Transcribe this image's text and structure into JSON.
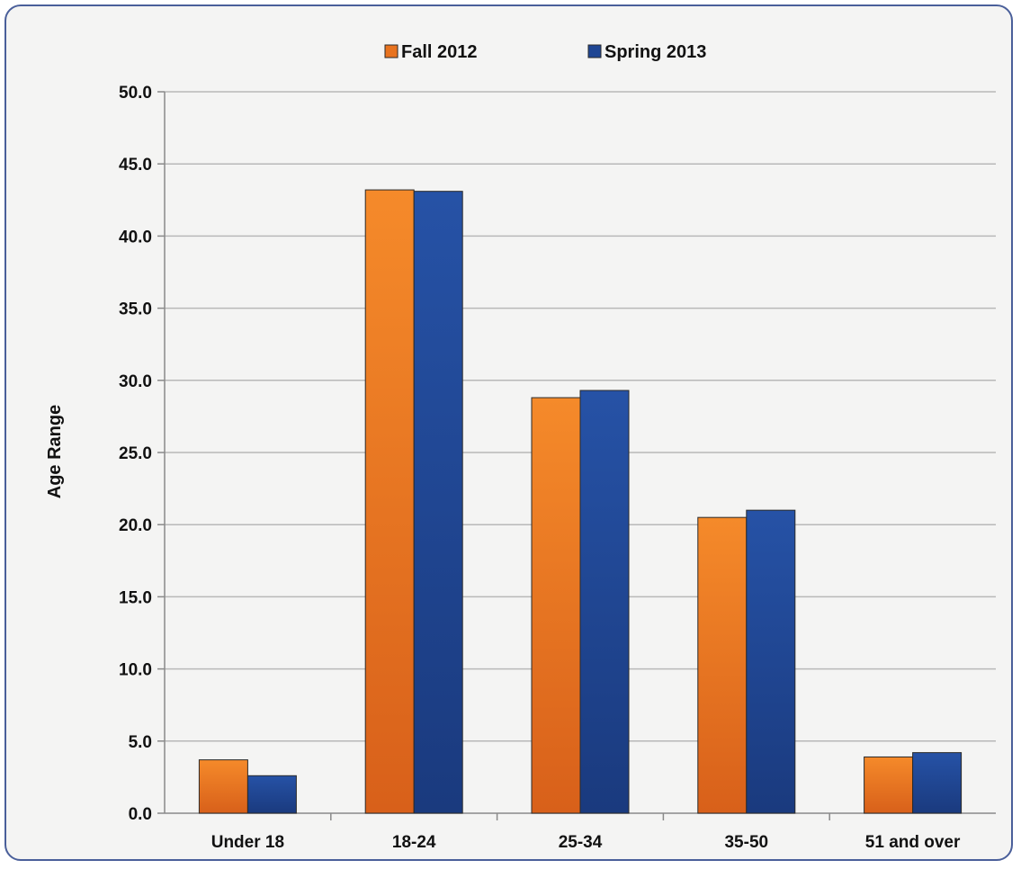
{
  "chart_data": {
    "type": "bar",
    "title": "",
    "xlabel": "",
    "ylabel": "Age Range",
    "ylim": [
      0,
      50
    ],
    "yticks": [
      "0.0",
      "5.0",
      "10.0",
      "15.0",
      "20.0",
      "25.0",
      "30.0",
      "35.0",
      "40.0",
      "45.0",
      "50.0"
    ],
    "grid": true,
    "legend_position": "top",
    "categories": [
      "Under 18",
      "18-24",
      "25-34",
      "35-50",
      "51 and over"
    ],
    "series": [
      {
        "name": "Fall 2012",
        "color": "#e8731f",
        "values": [
          3.7,
          43.2,
          28.8,
          20.5,
          3.9
        ]
      },
      {
        "name": "Spring 2013",
        "color": "#1f4694",
        "values": [
          2.6,
          43.1,
          29.3,
          21.0,
          4.2
        ]
      }
    ]
  }
}
